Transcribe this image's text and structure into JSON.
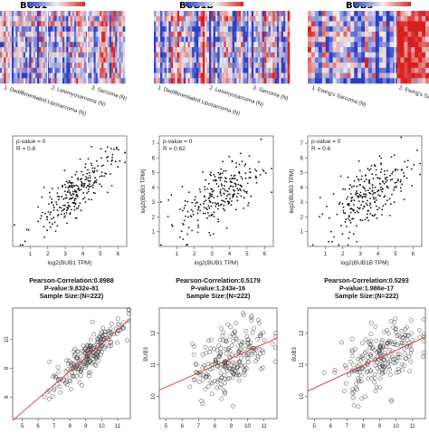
{
  "chart_data": [
    {
      "type": "heatmap",
      "title": "BUB1",
      "groups": [
        "1. Dedifferentiated Liposarcoma (N)",
        "2. Leiomyosarcoma (N)",
        "3. Sarcoma (N)"
      ]
    },
    {
      "type": "heatmap",
      "title": "BUB1B",
      "groups": [
        "1. Dedifferentiated Liposarcoma (N)",
        "2. Leiomyosarcoma (N)",
        "3. Sarcoma (N)"
      ]
    },
    {
      "type": "heatmap",
      "title": "BUB3",
      "groups": [
        "1. Ewing's Sarcoma (N)",
        "2. Ewing's Sarcoma (N)"
      ]
    },
    {
      "type": "scatter",
      "annotations": [
        "p-value = 0",
        "R = 0.8"
      ],
      "xlabel": "log2(BUB1 TPM)",
      "ylabel": "",
      "xlim": [
        0,
        6.5
      ],
      "ylim": [
        0,
        7.5
      ],
      "xticks": [
        1,
        2,
        3,
        4,
        5,
        6
      ],
      "yticks": [],
      "r": 0.8,
      "n": 260
    },
    {
      "type": "scatter",
      "annotations": [
        "p-value = 0",
        "R = 0.62"
      ],
      "xlabel": "log2(BUB1 TPM)",
      "ylabel": "log2(BUB3 TPM)",
      "xlim": [
        0,
        6.5
      ],
      "ylim": [
        0,
        7.5
      ],
      "xticks": [
        1,
        2,
        3,
        4,
        5,
        6
      ],
      "yticks": [
        1,
        2,
        3,
        4,
        5,
        6,
        7
      ],
      "r": 0.62,
      "n": 260
    },
    {
      "type": "scatter",
      "annotations": [
        "p-value = 0",
        "R = 0.6"
      ],
      "xlabel": "log2(BUB1B TPM)",
      "ylabel": "log2(BUB3 TPM)",
      "xlim": [
        0,
        6.5
      ],
      "ylim": [
        0,
        7.5
      ],
      "xticks": [
        1,
        2,
        3,
        4,
        5,
        6
      ],
      "yticks": [
        1,
        2,
        3,
        4,
        5,
        6,
        7
      ],
      "r": 0.6,
      "n": 260
    },
    {
      "type": "scatter",
      "title_lines": [
        "Pearson-Correlation:0.8988",
        "P-value:9.832e-81",
        "Sample Size:(N=222)"
      ],
      "xlabel": "BUB1",
      "ylabel": "",
      "xlim": [
        4.4,
        11.8
      ],
      "ylim": [
        4.5,
        12.2
      ],
      "xticks": [
        5,
        6,
        7,
        8,
        9,
        10,
        11
      ],
      "yticks": [
        6,
        8,
        10
      ],
      "r": 0.8988,
      "n": 222
    },
    {
      "type": "scatter",
      "title_lines": [
        "Pearson-Correlation:0.5179",
        "P-value:1.243e-16",
        "Sample Size:(N=222)"
      ],
      "xlabel": "BUB1",
      "ylabel": "BUB3",
      "xlim": [
        4.6,
        11.8
      ],
      "ylim": [
        9.3,
        12.8
      ],
      "xticks": [
        5,
        6,
        7,
        8,
        9,
        10,
        11
      ],
      "yticks": [
        10,
        11,
        12
      ],
      "r": 0.5179,
      "n": 222
    },
    {
      "type": "scatter",
      "title_lines": [
        "Pearson-Correlation:0.5293",
        "P-value:1.986e-17",
        "Sample Size:(N=222)"
      ],
      "xlabel": "BUB1B",
      "ylabel": "BUB3",
      "xlim": [
        4.6,
        11.8
      ],
      "ylim": [
        9.3,
        12.8
      ],
      "xticks": [
        5,
        6,
        7,
        8,
        9,
        10,
        11
      ],
      "yticks": [
        10,
        11,
        12
      ],
      "r": 0.5293,
      "n": 222
    }
  ],
  "colors": {
    "low": "#2b3fc4",
    "mid": "#f2eef0",
    "high": "#d81f1f",
    "point": "#111111",
    "fit": "#e03030",
    "circle": "#333333"
  }
}
